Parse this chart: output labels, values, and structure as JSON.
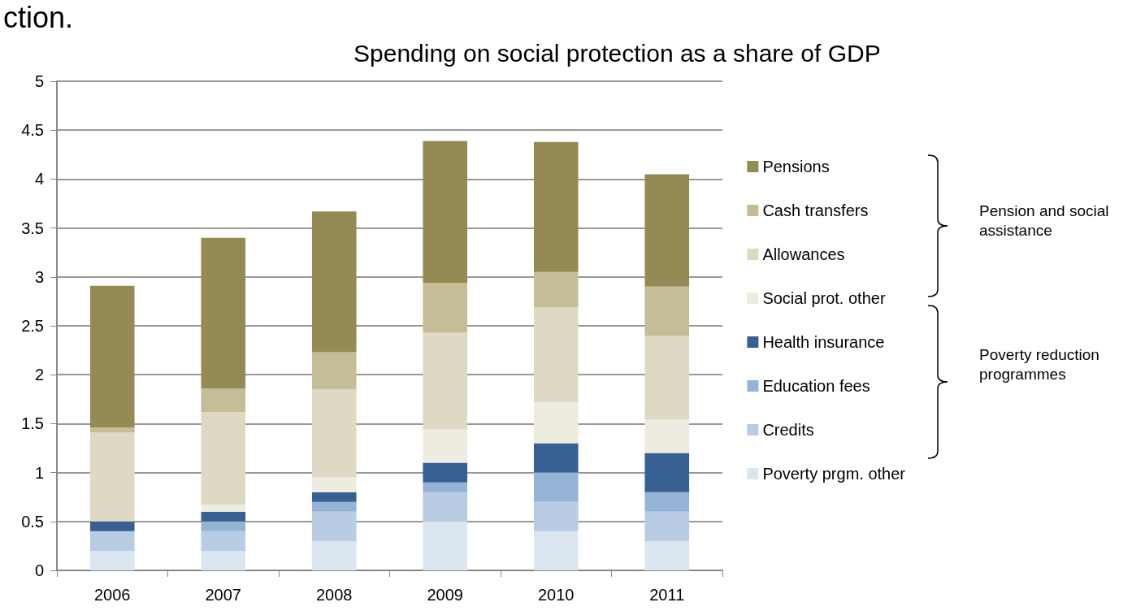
{
  "chart_data": {
    "type": "bar",
    "title": "Spending on social protection as a share of GDP",
    "stacked": true,
    "categories": [
      "2006",
      "2007",
      "2008",
      "2009",
      "2010",
      "2011"
    ],
    "series": [
      {
        "name": "Poverty prgm. other",
        "color": "#dce6f1",
        "values": [
          0.2,
          0.2,
          0.3,
          0.5,
          0.4,
          0.3
        ]
      },
      {
        "name": "Credits",
        "color": "#b8cce4",
        "values": [
          0.2,
          0.2,
          0.3,
          0.3,
          0.3,
          0.3
        ]
      },
      {
        "name": "Education fees",
        "color": "#95b3d7",
        "values": [
          0,
          0.1,
          0.1,
          0.1,
          0.3,
          0.2
        ]
      },
      {
        "name": "Health insurance",
        "color": "#366092",
        "values": [
          0.1,
          0.1,
          0.1,
          0.2,
          0.3,
          0.4
        ]
      },
      {
        "name": "Social prot. other",
        "color": "#eeece1",
        "values": [
          0,
          0.07,
          0.15,
          0.34,
          0.42,
          0.34
        ]
      },
      {
        "name": "Allowances",
        "color": "#ddd9c3",
        "values": [
          0.91,
          0.95,
          0.9,
          0.99,
          0.97,
          0.86
        ]
      },
      {
        "name": "Cash transfers",
        "color": "#c4bd97",
        "values": [
          0.05,
          0.24,
          0.38,
          0.51,
          0.36,
          0.5
        ]
      },
      {
        "name": "Pensions",
        "color": "#948a54",
        "values": [
          1.45,
          1.54,
          1.44,
          1.45,
          1.33,
          1.15
        ]
      }
    ],
    "ylim": [
      0,
      5
    ],
    "yticks": [
      0,
      0.5,
      1,
      1.5,
      2,
      2.5,
      3,
      3.5,
      4,
      4.5,
      5
    ],
    "grid": "y",
    "legend": "right",
    "annotations": [
      "ction.",
      "Pension and social assistance",
      "Poverty reduction programmes"
    ]
  }
}
